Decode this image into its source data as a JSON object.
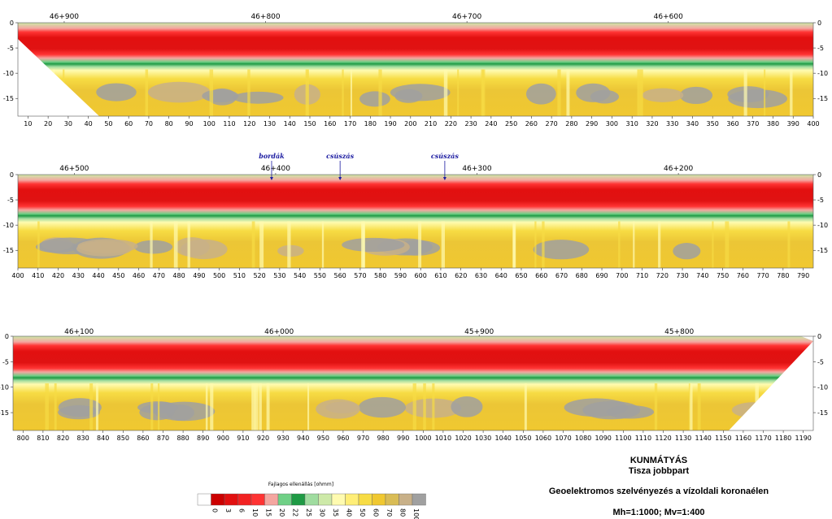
{
  "title_block": {
    "location": "KUNMÁTYÁS",
    "bank": "Tisza jobbpart",
    "subject": "Geoelektromos szelvényezés a vízoldali koronaélen",
    "scale": "Mh=1:1000; Mv=1:400"
  },
  "legend": {
    "title": "Fajlagos ellenállás [ohmm]",
    "breaks": [
      "0",
      "3",
      "6",
      "10",
      "15",
      "20",
      "22",
      "25",
      "30",
      "35",
      "40",
      "50",
      "60",
      "70",
      "80",
      "100"
    ],
    "colors": [
      "#ffffff",
      "#cc0000",
      "#e21010",
      "#f22222",
      "#ff3333",
      "#f4a6a0",
      "#6fd086",
      "#1e9a44",
      "#9fdc9f",
      "#cde9a8",
      "#fffbb0",
      "#ffee77",
      "#f7dc44",
      "#f0c830",
      "#d9bc55",
      "#c8b088",
      "#a0a0a0"
    ]
  },
  "chart_data": [
    {
      "type": "heatmap",
      "panel": "1",
      "x_ticks": [
        "10",
        "20",
        "30",
        "40",
        "50",
        "60",
        "70",
        "80",
        "90",
        "100",
        "110",
        "120",
        "130",
        "140",
        "150",
        "160",
        "170",
        "180",
        "190",
        "200",
        "210",
        "220",
        "230",
        "240",
        "250",
        "260",
        "270",
        "280",
        "290",
        "300",
        "310",
        "320",
        "330",
        "340",
        "350",
        "360",
        "370",
        "380",
        "390",
        "400"
      ],
      "xlim": [
        5,
        400
      ],
      "y_ticks": [
        "0",
        "-5",
        "-10",
        "-15"
      ],
      "ylim": [
        -18.5,
        0
      ],
      "stations": [
        {
          "label": "46+900",
          "x": 28
        },
        {
          "label": "46+800",
          "x": 128
        },
        {
          "label": "46+700",
          "x": 228
        },
        {
          "label": "46+600",
          "x": 328
        }
      ],
      "annotations": []
    },
    {
      "type": "heatmap",
      "panel": "2",
      "x_ticks": [
        "400",
        "410",
        "420",
        "430",
        "440",
        "450",
        "460",
        "470",
        "480",
        "490",
        "500",
        "510",
        "520",
        "530",
        "540",
        "550",
        "560",
        "570",
        "580",
        "590",
        "600",
        "610",
        "620",
        "630",
        "640",
        "650",
        "660",
        "670",
        "680",
        "690",
        "700",
        "710",
        "720",
        "730",
        "740",
        "750",
        "760",
        "770",
        "780",
        "790"
      ],
      "xlim": [
        400,
        795
      ],
      "y_ticks": [
        "0",
        "-5",
        "-10",
        "-15"
      ],
      "ylim": [
        -18.5,
        0
      ],
      "stations": [
        {
          "label": "46+500",
          "x": 428
        },
        {
          "label": "46+400",
          "x": 528
        },
        {
          "label": "46+300",
          "x": 628
        },
        {
          "label": "46+200",
          "x": 728
        }
      ],
      "annotations": [
        {
          "label": "bordák",
          "x": 526
        },
        {
          "label": "csúszás",
          "x": 560
        },
        {
          "label": "csúszás",
          "x": 612
        }
      ]
    },
    {
      "type": "heatmap",
      "panel": "3",
      "x_ticks": [
        "800",
        "810",
        "820",
        "830",
        "840",
        "850",
        "860",
        "870",
        "880",
        "890",
        "900",
        "910",
        "920",
        "930",
        "940",
        "950",
        "960",
        "970",
        "980",
        "990",
        "1000",
        "1010",
        "1020",
        "1030",
        "1040",
        "1050",
        "1060",
        "1070",
        "1080",
        "1090",
        "1100",
        "1110",
        "1120",
        "1130",
        "1140",
        "1150",
        "1160",
        "1170",
        "1180",
        "1190"
      ],
      "xlim": [
        795,
        1195
      ],
      "y_ticks": [
        "0",
        "-5",
        "-10",
        "-15"
      ],
      "ylim": [
        -18.5,
        0
      ],
      "stations": [
        {
          "label": "46+100",
          "x": 828
        },
        {
          "label": "46+000",
          "x": 928
        },
        {
          "label": "45+900",
          "x": 1028
        },
        {
          "label": "45+800",
          "x": 1128
        }
      ],
      "annotations": []
    }
  ]
}
